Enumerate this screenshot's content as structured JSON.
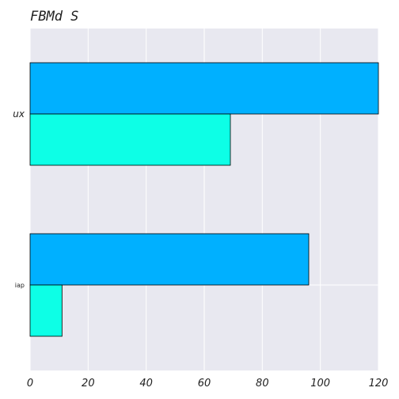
{
  "chart_data": {
    "type": "bar",
    "orientation": "horizontal",
    "title": "FBMd S",
    "xlabel": "",
    "ylabel": "",
    "categories": [
      "ux",
      "iap"
    ],
    "series": [
      {
        "color": "#00b0ff",
        "values": [
          120,
          96
        ]
      },
      {
        "color": "#0dffe6",
        "values": [
          69,
          11
        ]
      }
    ],
    "xlim": [
      0,
      120
    ],
    "x_ticks": [
      0,
      20,
      40,
      60,
      80,
      100,
      120
    ],
    "grid": true,
    "background_color": "#e8e8f0"
  }
}
